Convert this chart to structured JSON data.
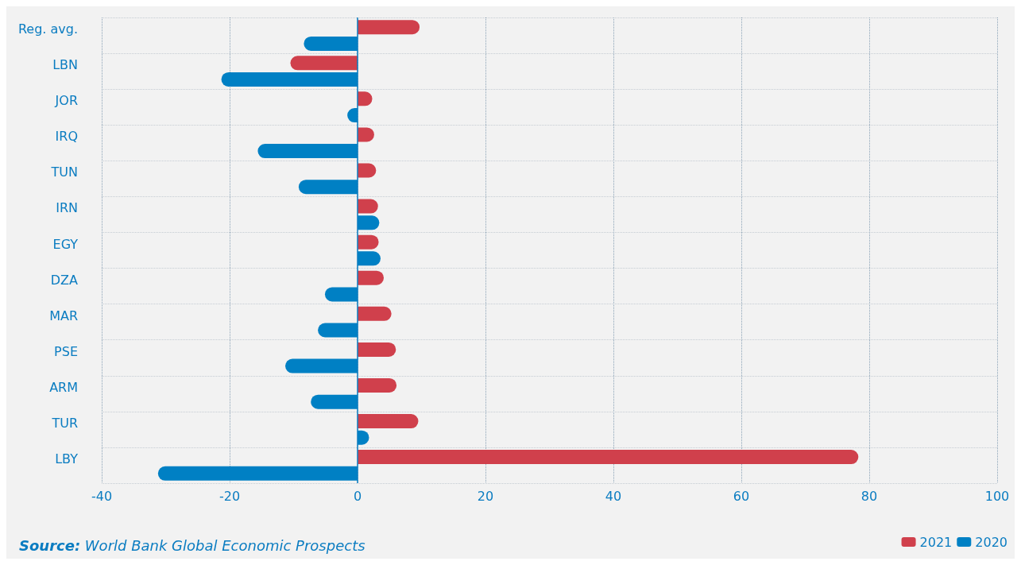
{
  "chart_data": {
    "type": "bar",
    "orientation": "horizontal",
    "categories": [
      "Reg. avg.",
      "LBN",
      "JOR",
      "IRQ",
      "TUN",
      "IRN",
      "EGY",
      "DZA",
      "MAR",
      "PSE",
      "ARM",
      "TUR",
      "LBY"
    ],
    "series": [
      {
        "name": "2021",
        "color": "#d0404c",
        "values": [
          9.7,
          -10.5,
          2.3,
          2.6,
          2.9,
          3.2,
          3.3,
          4.1,
          5.3,
          6.0,
          6.1,
          9.5,
          78.3
        ]
      },
      {
        "name": "2020",
        "color": "#0080c4",
        "values": [
          -8.4,
          -21.3,
          -1.6,
          -15.6,
          -9.2,
          3.4,
          3.6,
          -5.1,
          -6.2,
          -11.3,
          -7.3,
          1.8,
          -31.2
        ]
      }
    ],
    "xlim": [
      -40,
      100
    ],
    "xticks": [
      -40,
      -20,
      0,
      20,
      40,
      60,
      80,
      100
    ],
    "grid": true,
    "legend": "bottom right",
    "ref_lines": [
      {
        "axis": "x",
        "value": 0,
        "color": "#0a7cc1"
      }
    ],
    "annotations": [
      "Source: World Bank Global Economic Prospects"
    ]
  }
}
